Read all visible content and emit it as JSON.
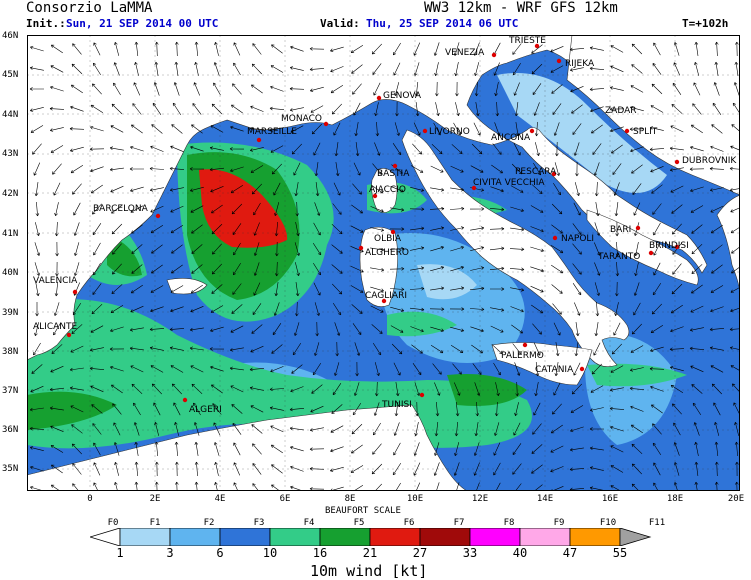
{
  "header": {
    "org": "Consorzio LaMMA",
    "model": "WW3 12km - WRF GFS 12km",
    "init_label": "Init.:",
    "init_value": "Sun, 21 SEP 2014   00 UTC",
    "valid_label": "Valid:",
    "valid_value": "Thu, 25 SEP 2014   06 UTC",
    "lead_time": "T=+102h"
  },
  "axes": {
    "lat_labels": [
      "46N",
      "45N",
      "44N",
      "43N",
      "42N",
      "41N",
      "40N",
      "39N",
      "38N",
      "37N",
      "36N",
      "35N"
    ],
    "lon_labels": [
      "0",
      "2E",
      "4E",
      "6E",
      "8E",
      "10E",
      "12E",
      "14E",
      "16E",
      "18E",
      "20E"
    ]
  },
  "cities": [
    "TRIESTE",
    "VENEZIA",
    "RIJEKA",
    "GENOVA",
    "MONACO",
    "MARSEILLE",
    "LIVORNO",
    "ZADAR",
    "SPLIT",
    "ANCONA",
    "DUBROVNIK",
    "BASTIA",
    "AJACCIO",
    "PESCARA",
    "CIVITA VECCHIA",
    "BARCELONA",
    "OLBIA",
    "NAPOLI",
    "BARI",
    "BRINDISI",
    "ALGHERO",
    "TARANTO",
    "VALENCIA",
    "CAGLIARI",
    "ALICANTE",
    "PALERMO",
    "CATANIA",
    "ALGERI",
    "TUNISI"
  ],
  "legend": {
    "title": "BEAUFORT SCALE",
    "beaufort": [
      "F0",
      "F1",
      "F2",
      "F3",
      "F4",
      "F5",
      "F6",
      "F7",
      "F8",
      "F9",
      "F10",
      "F11"
    ],
    "knots": [
      "1",
      "3",
      "6",
      "10",
      "16",
      "21",
      "27",
      "33",
      "40",
      "47",
      "55"
    ],
    "colors": [
      "#a7d8f5",
      "#5fb4ef",
      "#2f74d8",
      "#33cc88",
      "#16a030",
      "#e01a10",
      "#a00a0a",
      "#ff00ff",
      "#ffa8e8",
      "#ff9900"
    ],
    "caption": "10m wind [kt]"
  },
  "map_colors": {
    "land": "#ffffff",
    "sea_light": "#a7d8f5",
    "sea_mid": "#5fb4ef",
    "sea_blue": "#2f74d8",
    "green_light": "#33cc88",
    "green_dark": "#16a030",
    "red": "#e01a10",
    "city_dot": "#dd0000"
  }
}
